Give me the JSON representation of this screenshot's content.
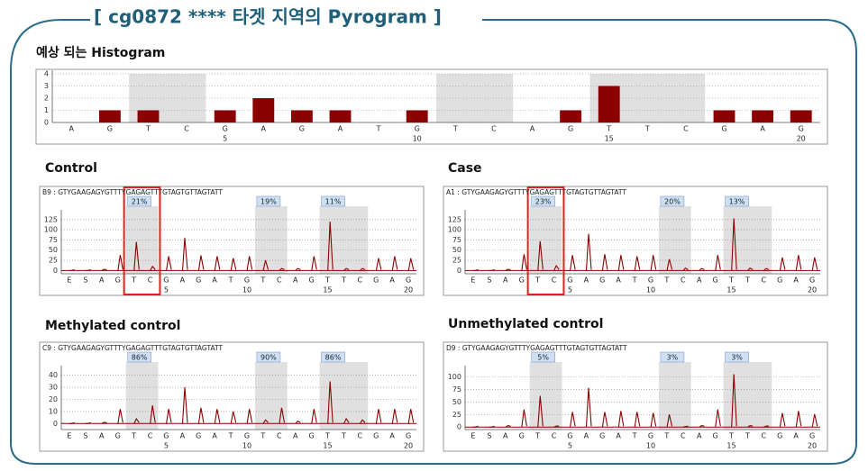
{
  "slide": {
    "title": "[ cg0872 **** 타겟 지역의 Pyrogram ]"
  },
  "chart_data": [
    {
      "type": "bar",
      "title": "예상 되는 Histogram",
      "categories": [
        "A",
        "G",
        "T",
        "C",
        "G",
        "A",
        "G",
        "A",
        "T",
        "G",
        "T",
        "C",
        "A",
        "G",
        "T",
        "T",
        "C",
        "G",
        "A",
        "G"
      ],
      "values": [
        0,
        1,
        1,
        0,
        1,
        2,
        1,
        1,
        0,
        1,
        0,
        0,
        0,
        1,
        3,
        0,
        0,
        1,
        1,
        1
      ],
      "position_labels": [
        5,
        10,
        15,
        20
      ],
      "ylim": [
        0,
        4
      ],
      "yticks": [
        0,
        1,
        2,
        3,
        4
      ],
      "grid": true,
      "color": "#8b0000",
      "highlight_regions": [
        [
          3,
          4
        ],
        [
          11,
          12
        ],
        [
          15,
          17
        ]
      ]
    },
    {
      "type": "pyrogram",
      "title": "Control",
      "sequence_label": "B9 : GTYGAAGAGYGTTTYGAGAGTTTGTAGTGTTAGTATT",
      "categories": [
        "E",
        "S",
        "A",
        "G",
        "T",
        "C",
        "G",
        "A",
        "G",
        "A",
        "T",
        "G",
        "T",
        "C",
        "A",
        "G",
        "T",
        "T",
        "C",
        "G",
        "A",
        "G"
      ],
      "values": [
        0,
        0,
        3,
        38,
        70,
        10,
        35,
        80,
        37,
        35,
        30,
        35,
        25,
        5,
        5,
        35,
        120,
        5,
        5,
        30,
        35,
        30
      ],
      "position_labels": [
        5,
        10,
        15,
        20
      ],
      "ylim": [
        -8,
        140
      ],
      "yticks": [
        0,
        25,
        50,
        75,
        100,
        125
      ],
      "grid": true,
      "color": "#8b0000",
      "regions": [
        {
          "label": "21%",
          "from": 3,
          "to": 4,
          "boxed": true
        },
        {
          "label": "19%",
          "from": 11,
          "to": 12
        },
        {
          "label": "11%",
          "from": 15,
          "to": 17
        }
      ]
    },
    {
      "type": "pyrogram",
      "title": "Case",
      "sequence_label": "A1 : GTYGAAGAGYGTTTYGAGAGTTTGTAGTGTTAGTATT",
      "categories": [
        "E",
        "S",
        "A",
        "G",
        "T",
        "C",
        "G",
        "A",
        "G",
        "A",
        "T",
        "G",
        "T",
        "C",
        "A",
        "G",
        "T",
        "T",
        "C",
        "G",
        "A",
        "G"
      ],
      "values": [
        0,
        0,
        3,
        40,
        72,
        12,
        38,
        90,
        40,
        38,
        35,
        38,
        28,
        6,
        5,
        38,
        128,
        6,
        5,
        32,
        38,
        32
      ],
      "position_labels": [
        5,
        10,
        15,
        20
      ],
      "ylim": [
        -8,
        140
      ],
      "yticks": [
        0,
        25,
        50,
        75,
        100,
        125
      ],
      "grid": true,
      "color": "#8b0000",
      "regions": [
        {
          "label": "23%",
          "from": 3,
          "to": 4,
          "boxed": true
        },
        {
          "label": "20%",
          "from": 11,
          "to": 12
        },
        {
          "label": "13%",
          "from": 15,
          "to": 17
        }
      ]
    },
    {
      "type": "pyrogram",
      "title": "Methylated control",
      "sequence_label": "C9 : GTYGAAGAGYGTTTYGAGAGTTTGTAGTGTTAGTATT",
      "categories": [
        "E",
        "S",
        "A",
        "G",
        "T",
        "C",
        "G",
        "A",
        "G",
        "A",
        "T",
        "G",
        "T",
        "C",
        "A",
        "G",
        "T",
        "T",
        "C",
        "G",
        "A",
        "G"
      ],
      "values": [
        0,
        0,
        1,
        12,
        4,
        15,
        12,
        30,
        13,
        12,
        10,
        12,
        3,
        13,
        2,
        12,
        35,
        4,
        3,
        12,
        12,
        12
      ],
      "position_labels": [
        5,
        10,
        15,
        20
      ],
      "ylim": [
        -5,
        45
      ],
      "yticks": [
        0,
        10,
        20,
        30,
        40
      ],
      "grid": true,
      "color": "#8b0000",
      "regions": [
        {
          "label": "86%",
          "from": 3,
          "to": 4
        },
        {
          "label": "90%",
          "from": 11,
          "to": 12
        },
        {
          "label": "86%",
          "from": 15,
          "to": 17
        }
      ]
    },
    {
      "type": "pyrogram",
      "title": "Unmethylated control",
      "sequence_label": "D9 : GTYGAAGAGYGTTTYGAGAGTTTGTAGTGTTAGTATT",
      "categories": [
        "E",
        "S",
        "A",
        "G",
        "T",
        "C",
        "G",
        "A",
        "G",
        "A",
        "T",
        "G",
        "T",
        "C",
        "A",
        "G",
        "T",
        "T",
        "C",
        "G",
        "A",
        "G"
      ],
      "values": [
        0,
        0,
        3,
        35,
        62,
        2,
        30,
        78,
        30,
        32,
        30,
        28,
        25,
        1,
        3,
        35,
        105,
        3,
        2,
        28,
        32,
        26
      ],
      "position_labels": [
        5,
        10,
        15,
        20
      ],
      "ylim": [
        -5,
        115
      ],
      "yticks": [
        0,
        25,
        50,
        75,
        100
      ],
      "grid": true,
      "color": "#8b0000",
      "regions": [
        {
          "label": "5%",
          "from": 3,
          "to": 4
        },
        {
          "label": "3%",
          "from": 11,
          "to": 12
        },
        {
          "label": "3%",
          "from": 15,
          "to": 17
        }
      ]
    }
  ]
}
